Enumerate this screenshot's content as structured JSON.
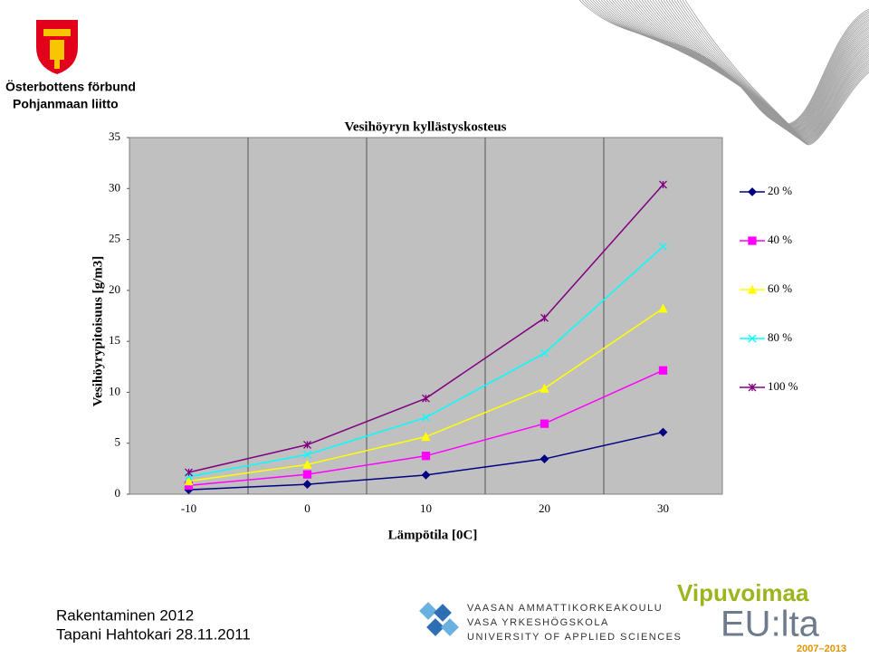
{
  "header": {
    "org_sv": "Österbottens förbund",
    "org_fi": "Pohjanmaan liitto"
  },
  "chart_data": {
    "type": "line",
    "title": "Vesihöyryn kyllästyskosteus",
    "x_label": "Lämpötila [0C]",
    "y_label": "Vesihöyrypitoisuus [g/m3]",
    "categories": [
      "-10",
      "0",
      "10",
      "20",
      "30"
    ],
    "series": [
      {
        "name": "20 %",
        "color": "#000080",
        "marker": "diamond",
        "values": [
          0.43,
          0.97,
          1.88,
          3.46,
          6.08
        ]
      },
      {
        "name": "40 %",
        "color": "#ff00ff",
        "marker": "square",
        "values": [
          0.86,
          1.94,
          3.76,
          6.92,
          12.15
        ]
      },
      {
        "name": "60 %",
        "color": "#ffff00",
        "marker": "triangle",
        "values": [
          1.28,
          2.91,
          5.64,
          10.38,
          18.23
        ]
      },
      {
        "name": "80 %",
        "color": "#00ffff",
        "marker": "x",
        "values": [
          1.71,
          3.88,
          7.52,
          13.84,
          24.3
        ]
      },
      {
        "name": "100 %",
        "color": "#800080",
        "marker": "star",
        "values": [
          2.14,
          4.85,
          9.4,
          17.3,
          30.38
        ]
      }
    ],
    "ylim": [
      0,
      35
    ],
    "yticks": [
      0,
      5,
      10,
      15,
      20,
      25,
      30,
      35
    ],
    "legend": "right",
    "background": "#c0c0c0"
  },
  "footer": {
    "line1": "Rakentaminen 2012",
    "line2": "Tapani Hahtokari 28.11.2011",
    "school": [
      "VAASAN AMMATTIKORKEAKOULU",
      "VASA YRKESHÖGSKOLA",
      "UNIVERSITY OF APPLIED SCIENCES"
    ],
    "eu_top": "Vipuvoimaa",
    "eu_main": "EU:lta",
    "eu_years": "2007–2013"
  }
}
